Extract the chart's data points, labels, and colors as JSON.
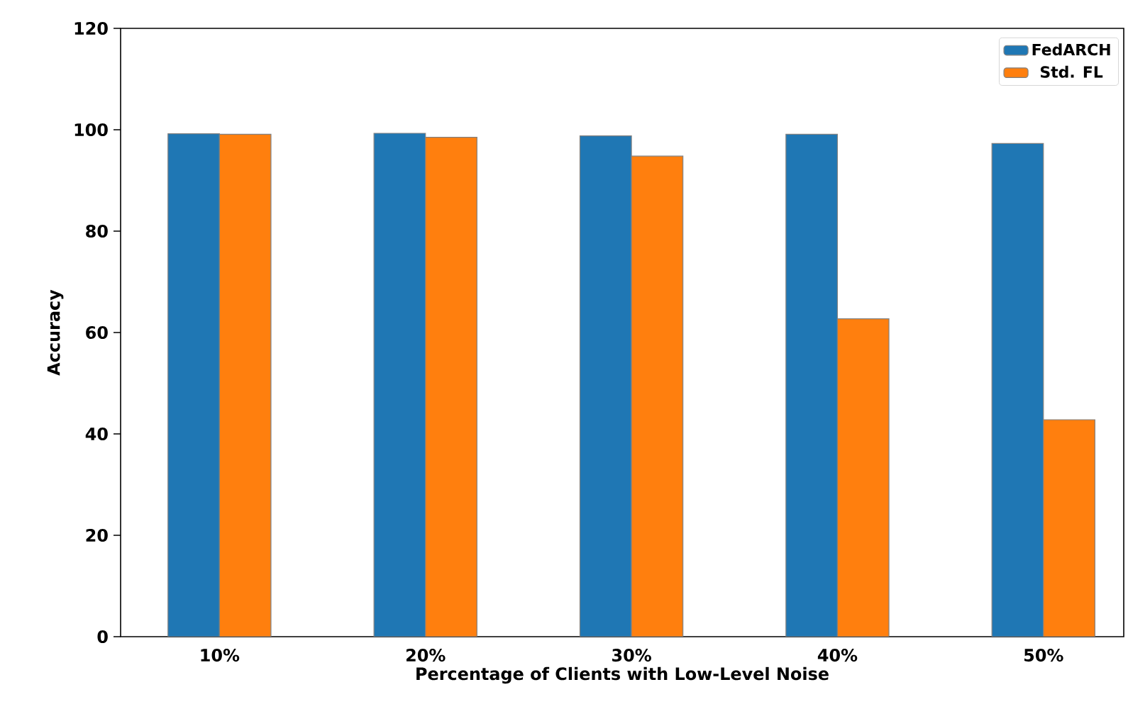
{
  "chart_data": {
    "type": "bar",
    "xlabel": "Percentage of Clients with Low-Level Noise",
    "ylabel": "Accuracy",
    "categories": [
      "10%",
      "20%",
      "30%",
      "40%",
      "50%"
    ],
    "series": [
      {
        "name": "FedARCH",
        "color": "#1f77b4",
        "values": [
          99.2,
          99.3,
          98.8,
          99.1,
          97.3
        ]
      },
      {
        "name": "Std. FL",
        "color": "#ff7f0e",
        "values": [
          99.1,
          98.5,
          94.8,
          62.7,
          42.8
        ]
      }
    ],
    "ylim": [
      0,
      120
    ],
    "yticks": [
      0,
      20,
      40,
      60,
      80,
      100,
      120
    ],
    "legend": "top right",
    "grid": false
  }
}
